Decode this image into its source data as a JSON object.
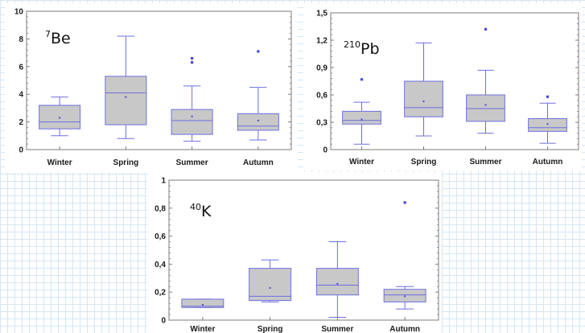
{
  "chart_data": [
    {
      "type": "box",
      "title": "7Be",
      "title_mass": "7",
      "title_element": "Be",
      "categories": [
        "Winter",
        "Spring",
        "Summer",
        "Autumn"
      ],
      "ylim": [
        0,
        10
      ],
      "yticks": [
        0,
        2,
        4,
        6,
        8,
        10
      ],
      "tick_labels": [
        "0",
        "2",
        "4",
        "6",
        "8",
        "10"
      ],
      "grid": false,
      "boxes": [
        {
          "category": "Winter",
          "whisker_low": 1.0,
          "q1": 1.5,
          "median": 2.0,
          "q3": 3.2,
          "whisker_high": 3.8,
          "mean": 2.3,
          "outliers": []
        },
        {
          "category": "Spring",
          "whisker_low": 0.8,
          "q1": 1.8,
          "median": 4.1,
          "q3": 5.3,
          "whisker_high": 8.2,
          "mean": 3.8,
          "outliers": []
        },
        {
          "category": "Summer",
          "whisker_low": 0.6,
          "q1": 1.1,
          "median": 2.1,
          "q3": 2.9,
          "whisker_high": 4.6,
          "mean": 2.4,
          "outliers": [
            6.3,
            6.6
          ]
        },
        {
          "category": "Autumn",
          "whisker_low": 0.7,
          "q1": 1.4,
          "median": 1.7,
          "q3": 2.6,
          "whisker_high": 4.5,
          "mean": 2.1,
          "outliers": [
            7.1
          ]
        }
      ]
    },
    {
      "type": "box",
      "title": "210Pb",
      "title_mass": "210",
      "title_element": "Pb",
      "categories": [
        "Winter",
        "Spring",
        "Summer",
        "Autumn"
      ],
      "ylim": [
        0,
        1.5
      ],
      "yticks": [
        0,
        0.3,
        0.6,
        0.9,
        1.2,
        1.5
      ],
      "tick_labels": [
        "0",
        "0,3",
        "0,6",
        "0,9",
        "1,2",
        "1,5"
      ],
      "grid": false,
      "boxes": [
        {
          "category": "Winter",
          "whisker_low": 0.06,
          "q1": 0.28,
          "median": 0.32,
          "q3": 0.42,
          "whisker_high": 0.52,
          "mean": 0.33,
          "outliers": [
            0.77
          ]
        },
        {
          "category": "Spring",
          "whisker_low": 0.15,
          "q1": 0.36,
          "median": 0.46,
          "q3": 0.75,
          "whisker_high": 1.17,
          "mean": 0.53,
          "outliers": []
        },
        {
          "category": "Summer",
          "whisker_low": 0.18,
          "q1": 0.31,
          "median": 0.45,
          "q3": 0.6,
          "whisker_high": 0.87,
          "mean": 0.49,
          "outliers": [
            1.32
          ]
        },
        {
          "category": "Autumn",
          "whisker_low": 0.07,
          "q1": 0.2,
          "median": 0.24,
          "q3": 0.34,
          "whisker_high": 0.51,
          "mean": 0.28,
          "outliers": [
            0.58
          ]
        }
      ]
    },
    {
      "type": "box",
      "title": "40K",
      "title_mass": "40",
      "title_element": "K",
      "categories": [
        "Winter",
        "Spring",
        "Summer",
        "Autumn"
      ],
      "ylim": [
        0,
        1
      ],
      "yticks": [
        0,
        0.2,
        0.4,
        0.6,
        0.8,
        1
      ],
      "tick_labels": [
        "0",
        "0,2",
        "0,4",
        "0,6",
        "0,8",
        "1"
      ],
      "grid": false,
      "boxes": [
        {
          "category": "Winter",
          "whisker_low": 0.09,
          "q1": 0.09,
          "median": 0.1,
          "q3": 0.15,
          "whisker_high": 0.15,
          "mean": 0.11,
          "outliers": []
        },
        {
          "category": "Spring",
          "whisker_low": 0.13,
          "q1": 0.14,
          "median": 0.17,
          "q3": 0.37,
          "whisker_high": 0.43,
          "mean": 0.23,
          "outliers": []
        },
        {
          "category": "Summer",
          "whisker_low": 0.02,
          "q1": 0.18,
          "median": 0.25,
          "q3": 0.37,
          "whisker_high": 0.56,
          "mean": 0.26,
          "outliers": []
        },
        {
          "category": "Autumn",
          "whisker_low": 0.08,
          "q1": 0.13,
          "median": 0.18,
          "q3": 0.22,
          "whisker_high": 0.24,
          "mean": 0.17,
          "outliers": [
            0.84
          ]
        }
      ]
    }
  ],
  "colors": {
    "box_fill": "#c8c8c8",
    "box_stroke": "#6e6ee0",
    "point": "#4a4ad6",
    "axis_frame": "#7b7b7b",
    "page_grid": "#d6e6f3"
  }
}
